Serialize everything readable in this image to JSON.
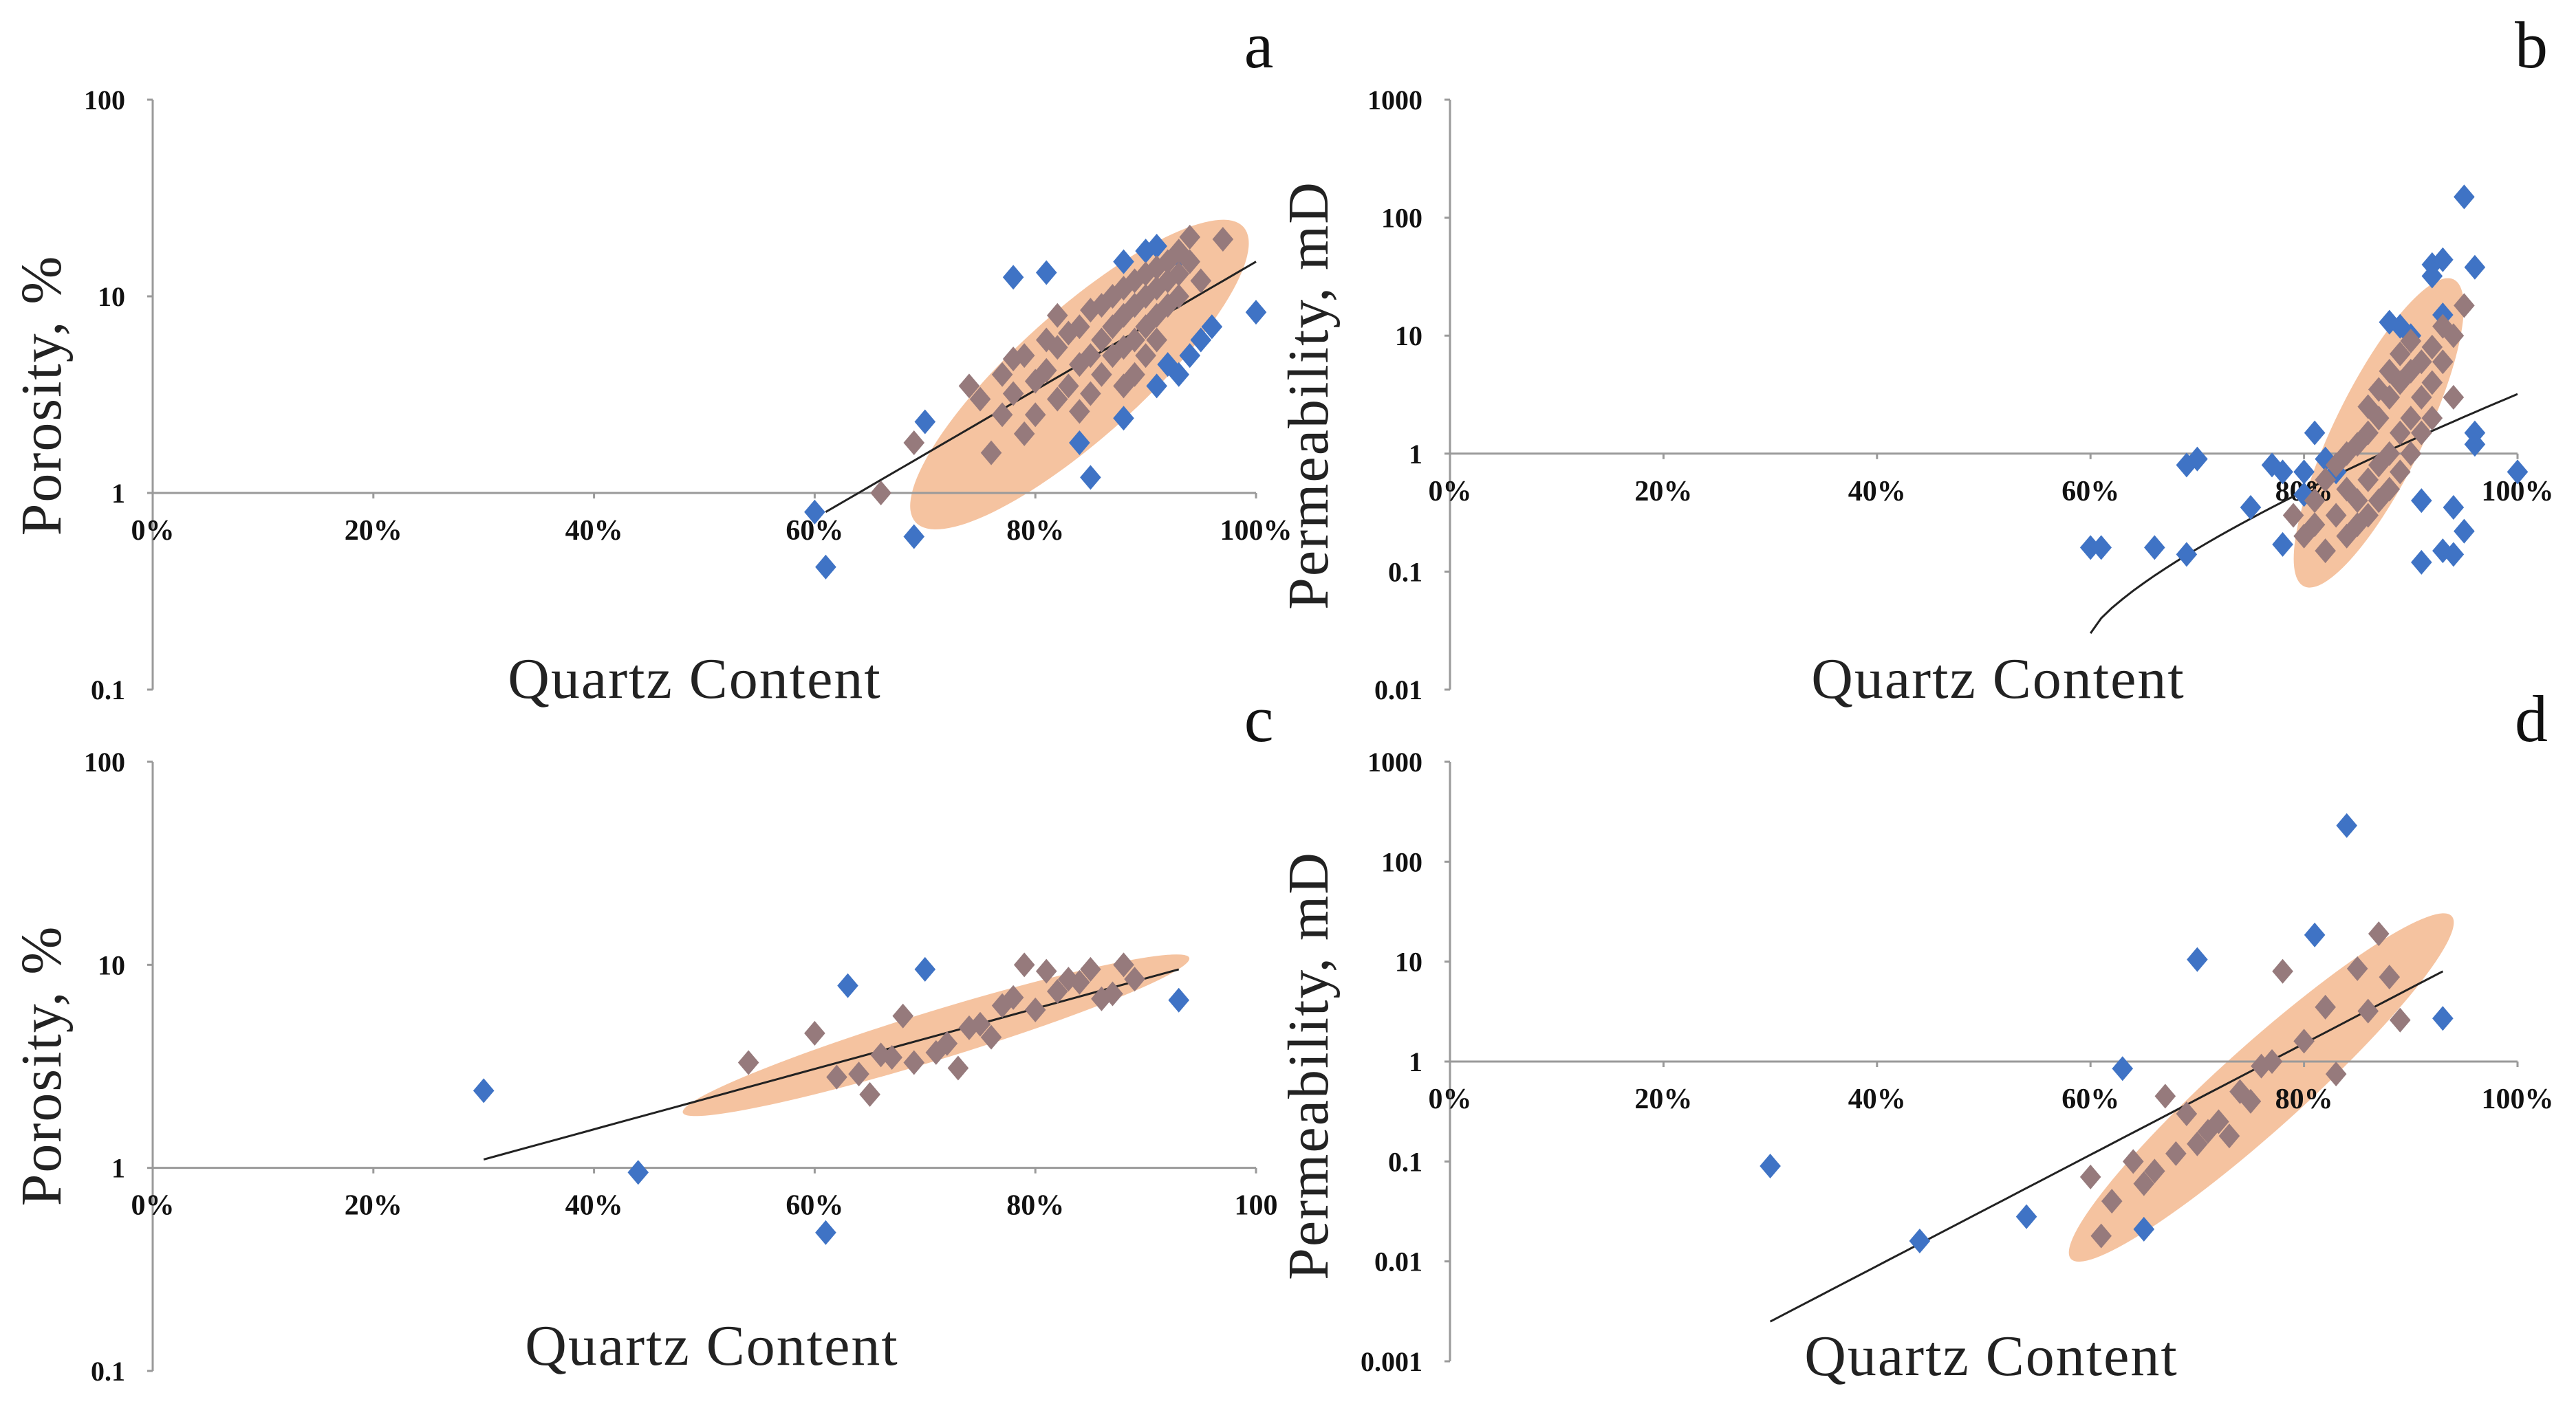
{
  "chart_data": [
    {
      "id": "a",
      "type": "scatter",
      "panel_label": "a",
      "xlabel": "Quartz Content",
      "ylabel": "Porosity, %",
      "yscale": "log",
      "xlim": [
        0,
        100
      ],
      "ylim": [
        0.1,
        100
      ],
      "x_axis_at_y": 1,
      "xtick_values": [
        0,
        20,
        40,
        60,
        80,
        100
      ],
      "xtick_labels": [
        "0%",
        "20%",
        "40%",
        "60%",
        "80%",
        "100%"
      ],
      "ytick_values": [
        100,
        10,
        1,
        0.1
      ],
      "ytick_labels": [
        "100",
        "10",
        "1",
        "0.1"
      ],
      "trendline": {
        "x": [
          61,
          100
        ],
        "y": [
          0.8,
          15
        ]
      },
      "ellipse": {
        "center": [
          84,
          4
        ],
        "x_radius": 20,
        "y_radius_decades": 0.32,
        "tilt": "up-right"
      },
      "series": [
        {
          "name": "outside",
          "color": "#3f73c5",
          "points": [
            [
              60,
              0.8
            ],
            [
              61,
              0.42
            ],
            [
              69,
              0.6
            ],
            [
              70,
              2.3
            ],
            [
              78,
              12.5
            ],
            [
              81,
              13.2
            ],
            [
              84,
              1.8
            ],
            [
              85,
              1.2
            ],
            [
              88,
              2.4
            ],
            [
              88,
              15
            ],
            [
              89,
              9
            ],
            [
              90,
              17
            ],
            [
              91,
              18
            ],
            [
              92,
              4.5
            ],
            [
              93,
              4
            ],
            [
              94,
              5
            ],
            [
              95,
              6
            ],
            [
              96,
              7
            ],
            [
              100,
              8.3
            ],
            [
              93,
              16
            ],
            [
              91,
              3.5
            ]
          ]
        },
        {
          "name": "inside",
          "color": "#967a7c",
          "points": [
            [
              66,
              1.0
            ],
            [
              69,
              1.8
            ],
            [
              74,
              3.5
            ],
            [
              75,
              3.0
            ],
            [
              76,
              1.6
            ],
            [
              77,
              4.0
            ],
            [
              77,
              2.5
            ],
            [
              78,
              3.2
            ],
            [
              78,
              4.8
            ],
            [
              79,
              2.0
            ],
            [
              79,
              5.0
            ],
            [
              80,
              3.7
            ],
            [
              80,
              2.5
            ],
            [
              81,
              4.2
            ],
            [
              81,
              6.0
            ],
            [
              82,
              3.0
            ],
            [
              82,
              5.5
            ],
            [
              82,
              8.0
            ],
            [
              83,
              3.5
            ],
            [
              83,
              6.5
            ],
            [
              84,
              4.5
            ],
            [
              84,
              7.0
            ],
            [
              84,
              2.6
            ],
            [
              85,
              5.0
            ],
            [
              85,
              8.5
            ],
            [
              85,
              3.2
            ],
            [
              86,
              6.0
            ],
            [
              86,
              9.0
            ],
            [
              86,
              4.0
            ],
            [
              87,
              7.0
            ],
            [
              87,
              10.0
            ],
            [
              87,
              5.0
            ],
            [
              88,
              8.0
            ],
            [
              88,
              11.0
            ],
            [
              88,
              5.5
            ],
            [
              88,
              3.5
            ],
            [
              89,
              9.0
            ],
            [
              89,
              12.0
            ],
            [
              89,
              6.0
            ],
            [
              89,
              4.0
            ],
            [
              90,
              10.0
            ],
            [
              90,
              13.0
            ],
            [
              90,
              7.0
            ],
            [
              90,
              5.0
            ],
            [
              91,
              11.0
            ],
            [
              91,
              14.0
            ],
            [
              91,
              8.0
            ],
            [
              91,
              6.0
            ],
            [
              92,
              12.0
            ],
            [
              92,
              15.0
            ],
            [
              92,
              9.0
            ],
            [
              93,
              13.0
            ],
            [
              93,
              17.0
            ],
            [
              93,
              10.0
            ],
            [
              94,
              15.0
            ],
            [
              94,
              20.0
            ],
            [
              95,
              12.0
            ],
            [
              97,
              19.5
            ]
          ]
        }
      ]
    },
    {
      "id": "b",
      "type": "scatter",
      "panel_label": "b",
      "xlabel": "Quartz Content",
      "ylabel": "Permeability, mD",
      "yscale": "log",
      "xlim": [
        0,
        100
      ],
      "ylim": [
        0.01,
        1000
      ],
      "x_axis_at_y": 1,
      "xtick_values": [
        0,
        20,
        40,
        60,
        80,
        100
      ],
      "xtick_labels": [
        "0%",
        "20%",
        "40%",
        "60%",
        "80%",
        "100%"
      ],
      "ytick_values": [
        1000,
        100,
        10,
        1,
        0.1,
        0.01
      ],
      "ytick_labels": [
        "1000",
        "100",
        "10",
        "1",
        "0.1",
        "0.01"
      ],
      "trendline": {
        "x": [
          60,
          100
        ],
        "y": [
          0.03,
          3.2
        ]
      },
      "ellipse": {
        "center": [
          87,
          1.5
        ],
        "x_radius": 16,
        "y_radius_decades": 0.38,
        "tilt": "steep"
      },
      "series": [
        {
          "name": "outside",
          "color": "#3f73c5",
          "points": [
            [
              60,
              0.16
            ],
            [
              61,
              0.16
            ],
            [
              66,
              0.16
            ],
            [
              69,
              0.8
            ],
            [
              69,
              0.14
            ],
            [
              70,
              0.9
            ],
            [
              75,
              0.35
            ],
            [
              77,
              0.8
            ],
            [
              78,
              0.7
            ],
            [
              78,
              0.17
            ],
            [
              80,
              0.7
            ],
            [
              80,
              0.45
            ],
            [
              81,
              1.5
            ],
            [
              82,
              0.9
            ],
            [
              83,
              0.7
            ],
            [
              88,
              13
            ],
            [
              89,
              12
            ],
            [
              90,
              10
            ],
            [
              91,
              0.12
            ],
            [
              91,
              0.4
            ],
            [
              92,
              32
            ],
            [
              92,
              40
            ],
            [
              93,
              44
            ],
            [
              93,
              15
            ],
            [
              93,
              0.15
            ],
            [
              94,
              0.14
            ],
            [
              94,
              0.35
            ],
            [
              95,
              150
            ],
            [
              95,
              0.22
            ],
            [
              96,
              38
            ],
            [
              96,
              1.5
            ],
            [
              96,
              1.2
            ],
            [
              100,
              0.7
            ]
          ]
        },
        {
          "name": "inside",
          "color": "#967a7c",
          "points": [
            [
              79,
              0.3
            ],
            [
              80,
              0.2
            ],
            [
              81,
              0.25
            ],
            [
              81,
              0.4
            ],
            [
              82,
              0.15
            ],
            [
              82,
              0.6
            ],
            [
              83,
              0.3
            ],
            [
              83,
              0.8
            ],
            [
              84,
              0.2
            ],
            [
              84,
              1.0
            ],
            [
              84,
              0.5
            ],
            [
              85,
              0.4
            ],
            [
              85,
              1.2
            ],
            [
              85,
              0.25
            ],
            [
              86,
              0.6
            ],
            [
              86,
              1.5
            ],
            [
              86,
              0.3
            ],
            [
              86,
              2.5
            ],
            [
              87,
              0.8
            ],
            [
              87,
              2.0
            ],
            [
              87,
              0.4
            ],
            [
              87,
              3.5
            ],
            [
              88,
              1.0
            ],
            [
              88,
              3.0
            ],
            [
              88,
              0.5
            ],
            [
              88,
              5.0
            ],
            [
              89,
              1.5
            ],
            [
              89,
              4.0
            ],
            [
              89,
              0.7
            ],
            [
              89,
              7.0
            ],
            [
              90,
              2.0
            ],
            [
              90,
              5.0
            ],
            [
              90,
              1.0
            ],
            [
              90,
              9.0
            ],
            [
              91,
              3.0
            ],
            [
              91,
              6.0
            ],
            [
              91,
              1.5
            ],
            [
              92,
              4.0
            ],
            [
              92,
              8.0
            ],
            [
              92,
              2.0
            ],
            [
              93,
              6.0
            ],
            [
              93,
              12.0
            ],
            [
              94,
              10.0
            ],
            [
              94,
              3.0
            ],
            [
              95,
              18.0
            ]
          ]
        }
      ]
    },
    {
      "id": "c",
      "type": "scatter",
      "panel_label": "c",
      "xlabel": "Quartz Content",
      "ylabel": "Porosity, %",
      "yscale": "log",
      "xlim": [
        0,
        100
      ],
      "ylim": [
        0.1,
        100
      ],
      "x_axis_at_y": 1,
      "xtick_values": [
        0,
        20,
        40,
        60,
        80,
        100
      ],
      "xtick_labels": [
        "0%",
        "20%",
        "40%",
        "60%",
        "80%",
        "100"
      ],
      "ytick_values": [
        100,
        10,
        1,
        0.1
      ],
      "ytick_labels": [
        "100",
        "10",
        "1",
        "0.1"
      ],
      "trendline": {
        "x": [
          30,
          93
        ],
        "y": [
          1.1,
          9.5
        ]
      },
      "ellipse": {
        "center": [
          71,
          4.5
        ],
        "x_radius": 24,
        "y_radius_decades": 0.12,
        "tilt": "shallow"
      },
      "series": [
        {
          "name": "outside",
          "color": "#3f73c5",
          "points": [
            [
              30,
              2.4
            ],
            [
              44,
              0.95
            ],
            [
              61,
              0.48
            ],
            [
              63,
              7.9
            ],
            [
              70,
              9.5
            ],
            [
              93,
              6.7
            ]
          ]
        },
        {
          "name": "inside",
          "color": "#967a7c",
          "points": [
            [
              54,
              3.3
            ],
            [
              60,
              4.6
            ],
            [
              62,
              2.8
            ],
            [
              64,
              2.9
            ],
            [
              65,
              2.3
            ],
            [
              66,
              3.6
            ],
            [
              67,
              3.5
            ],
            [
              68,
              5.6
            ],
            [
              69,
              3.3
            ],
            [
              71,
              3.7
            ],
            [
              72,
              4.1
            ],
            [
              73,
              3.1
            ],
            [
              74,
              4.9
            ],
            [
              75,
              5.1
            ],
            [
              76,
              4.4
            ],
            [
              77,
              6.3
            ],
            [
              78,
              6.9
            ],
            [
              79,
              10.0
            ],
            [
              80,
              6.0
            ],
            [
              81,
              9.3
            ],
            [
              82,
              7.4
            ],
            [
              83,
              8.5
            ],
            [
              84,
              8.2
            ],
            [
              85,
              9.5
            ],
            [
              86,
              6.8
            ],
            [
              87,
              7.2
            ],
            [
              88,
              10.0
            ],
            [
              89,
              8.5
            ]
          ]
        }
      ]
    },
    {
      "id": "d",
      "type": "scatter",
      "panel_label": "d",
      "xlabel": "Quartz Content",
      "ylabel": "Permeability, mD",
      "yscale": "log",
      "xlim": [
        0,
        100
      ],
      "ylim": [
        0.001,
        1000
      ],
      "x_axis_at_y": 1,
      "xtick_values": [
        0,
        20,
        40,
        60,
        80,
        100
      ],
      "xtick_labels": [
        "0%",
        "20%",
        "40%",
        "60%",
        "80%",
        "100%"
      ],
      "ytick_values": [
        1000,
        100,
        10,
        1,
        0.1,
        0.01,
        0.001
      ],
      "ytick_labels": [
        "1000",
        "100",
        "10",
        "1",
        "0.1",
        "0.01",
        "0.001"
      ],
      "trendline": {
        "x": [
          30,
          93
        ],
        "y": [
          0.0025,
          8
        ]
      },
      "ellipse": {
        "center": [
          76,
          0.55
        ],
        "x_radius": 24,
        "y_radius_decades": 0.42,
        "tilt": "up-right"
      },
      "series": [
        {
          "name": "outside",
          "color": "#3f73c5",
          "points": [
            [
              30,
              0.09
            ],
            [
              44,
              0.016
            ],
            [
              54,
              0.028
            ],
            [
              63,
              0.85
            ],
            [
              65,
              0.021
            ],
            [
              70,
              10.5
            ],
            [
              81,
              18.5
            ],
            [
              84,
              230
            ],
            [
              93,
              2.7
            ]
          ]
        },
        {
          "name": "inside",
          "color": "#967a7c",
          "points": [
            [
              60,
              0.07
            ],
            [
              61,
              0.018
            ],
            [
              62,
              0.04
            ],
            [
              64,
              0.1
            ],
            [
              65,
              0.06
            ],
            [
              66,
              0.08
            ],
            [
              67,
              0.45
            ],
            [
              68,
              0.12
            ],
            [
              69,
              0.3
            ],
            [
              70,
              0.15
            ],
            [
              71,
              0.2
            ],
            [
              72,
              0.25
            ],
            [
              73,
              0.18
            ],
            [
              74,
              0.5
            ],
            [
              75,
              0.4
            ],
            [
              76,
              0.9
            ],
            [
              77,
              1.0
            ],
            [
              78,
              8.0
            ],
            [
              80,
              1.6
            ],
            [
              82,
              3.5
            ],
            [
              83,
              0.75
            ],
            [
              85,
              8.5
            ],
            [
              86,
              3.2
            ],
            [
              87,
              19.0
            ],
            [
              88,
              7.0
            ],
            [
              89,
              2.6
            ]
          ]
        }
      ]
    }
  ]
}
